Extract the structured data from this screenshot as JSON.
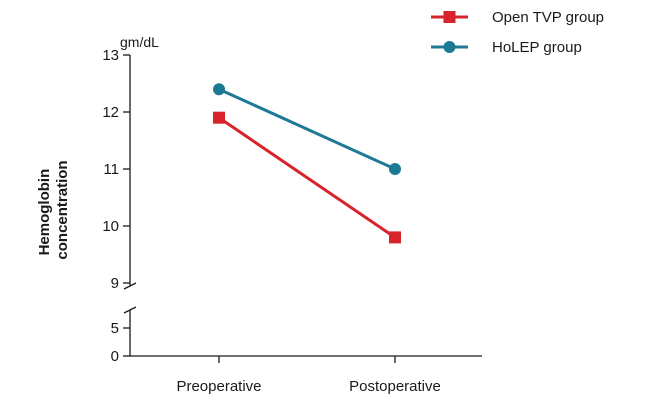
{
  "chart_data": {
    "type": "line",
    "categories": [
      "Preoperative",
      "Postoperative"
    ],
    "series": [
      {
        "name": "Open TVP group",
        "values": [
          11.9,
          9.8
        ],
        "color": "#d7242b",
        "marker": "square"
      },
      {
        "name": "HoLEP group",
        "values": [
          12.4,
          11.0
        ],
        "color": "#1d7a94",
        "marker": "circle"
      }
    ],
    "ylabel_lines": [
      "Hemoglobin",
      "concentration"
    ],
    "unit_label": "gm/dL",
    "y_ticks_upper": [
      9,
      10,
      11,
      12,
      13
    ],
    "y_ticks_lower": [
      0,
      5
    ],
    "ylim_upper": [
      9,
      13
    ],
    "ylim_lower": [
      0,
      5
    ],
    "axis_break": true,
    "legend_position": "top-right",
    "grid": false
  }
}
